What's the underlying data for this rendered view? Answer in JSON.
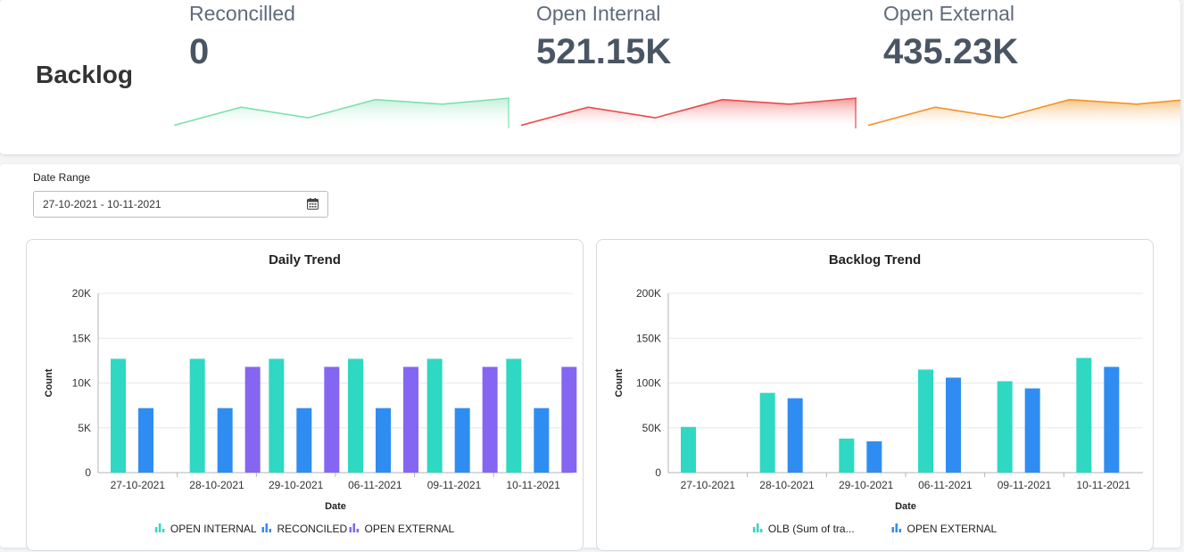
{
  "header": {
    "title": "Backlog",
    "kpis": [
      {
        "label": "Reconcilled",
        "value": "0",
        "color": "#7fdfb1",
        "fill_from": "#bff0d6",
        "trend": [
          0.1,
          0.7,
          0.35,
          0.95,
          0.8,
          1.0
        ]
      },
      {
        "label": "Open Internal",
        "value": "521.15K",
        "color": "#e74c4c",
        "fill_from": "#f29696",
        "trend": [
          0.1,
          0.7,
          0.35,
          0.95,
          0.8,
          1.0
        ]
      },
      {
        "label": "Open External",
        "value": "435.23K",
        "color": "#f0942a",
        "fill_from": "#f6bd77",
        "trend": [
          0.1,
          0.7,
          0.35,
          0.95,
          0.8,
          1.0
        ]
      }
    ]
  },
  "filters": {
    "date_range_label": "Date Range",
    "date_range_value": "27-10-2021 - 10-11-2021"
  },
  "colors": {
    "teal": "#2fd8c2",
    "blue": "#2f8df2",
    "purple": "#8466f2",
    "grid": "#e6e8eb",
    "axis": "#b0b4ba"
  },
  "chart_data": [
    {
      "type": "bar",
      "title": "Daily Trend",
      "xlabel": "Date",
      "ylabel": "Count",
      "ylim": [
        0,
        20000
      ],
      "yticks": [
        0,
        5000,
        10000,
        15000,
        20000
      ],
      "ytick_labels": [
        "0",
        "5K",
        "10K",
        "15K",
        "20K"
      ],
      "categories": [
        "27-10-2021",
        "28-10-2021",
        "29-10-2021",
        "06-11-2021",
        "09-11-2021",
        "10-11-2021"
      ],
      "legend_position": "bottom",
      "series": [
        {
          "name": "OPEN INTERNAL",
          "color": "#2fd8c2",
          "values": [
            12700,
            12700,
            12700,
            12700,
            12700,
            12700
          ]
        },
        {
          "name": "RECONCILED",
          "color": "#2f8df2",
          "values": [
            7200,
            7200,
            7200,
            7200,
            7200,
            7200
          ]
        },
        {
          "name": "OPEN EXTERNAL",
          "color": "#8466f2",
          "values": [
            0,
            11800,
            11800,
            11800,
            11800,
            11800
          ]
        }
      ]
    },
    {
      "type": "bar",
      "title": "Backlog Trend",
      "xlabel": "Date",
      "ylabel": "Count",
      "ylim": [
        0,
        200000
      ],
      "yticks": [
        0,
        50000,
        100000,
        150000,
        200000
      ],
      "ytick_labels": [
        "0",
        "50K",
        "100K",
        "150K",
        "200K"
      ],
      "categories": [
        "27-10-2021",
        "28-10-2021",
        "29-10-2021",
        "06-11-2021",
        "09-11-2021",
        "10-11-2021"
      ],
      "legend_position": "bottom",
      "series": [
        {
          "name": "OLB (Sum of tra...",
          "color": "#2fd8c2",
          "values": [
            51000,
            89000,
            38000,
            115000,
            102000,
            128000
          ]
        },
        {
          "name": "OPEN EXTERNAL",
          "color": "#2f8df2",
          "values": [
            0,
            83000,
            35000,
            106000,
            94000,
            118000
          ]
        }
      ]
    }
  ]
}
